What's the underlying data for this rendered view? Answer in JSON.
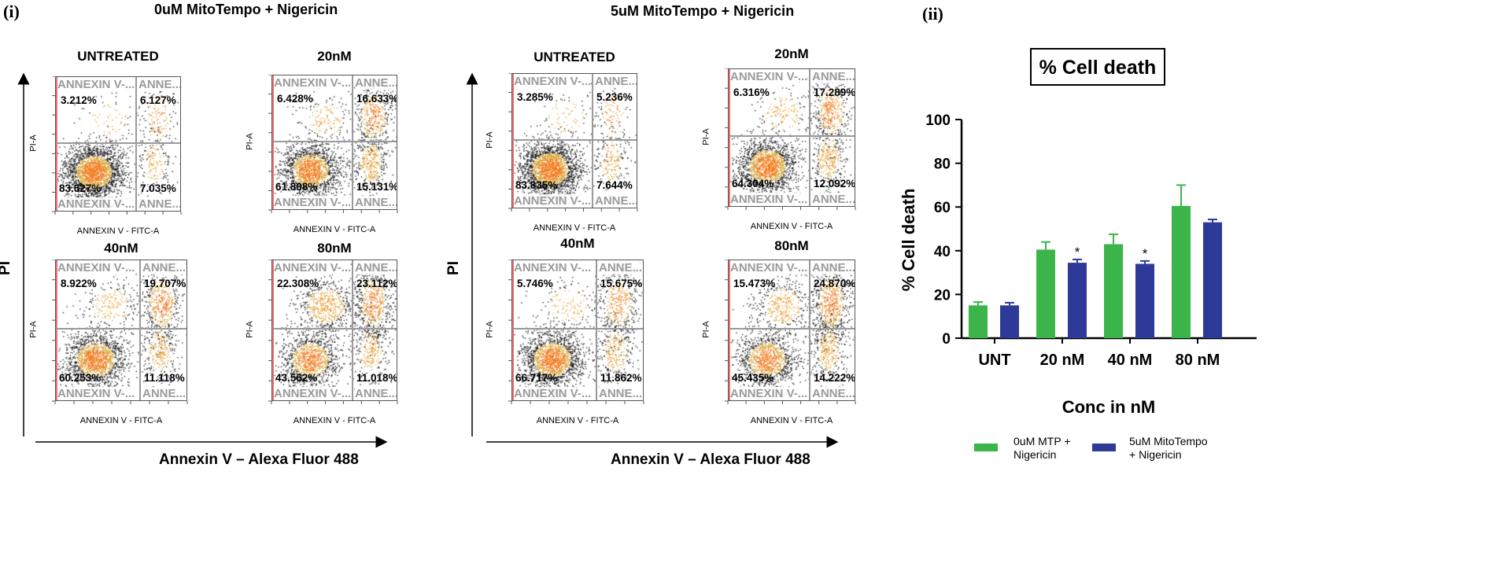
{
  "panel_i_label": "(i)",
  "panel_ii_label": "(ii)",
  "groups": [
    {
      "title": "0uM MitoTempo + Nigericin",
      "y_axis": "PI",
      "x_axis": "Annexin V – Alexa Fluor 488",
      "plots": [
        {
          "title": "UNTREATED",
          "q1": "3.212%",
          "q2": "6.127%",
          "q3": "83.627%",
          "q4": "7.035%"
        },
        {
          "title": "20nM",
          "q1": "6.428%",
          "q2": "16.633%",
          "q3": "61.808%",
          "q4": "15.131%"
        },
        {
          "title": "40nM",
          "q1": "8.922%",
          "q2": "19.707%",
          "q3": "60.253%",
          "q4": "11.118%"
        },
        {
          "title": "80nM",
          "q1": "22.308%",
          "q2": "23.112%",
          "q3": "43.562%",
          "q4": "11.018%"
        }
      ]
    },
    {
      "title": "5uM MitoTempo + Nigericin",
      "y_axis": "PI",
      "x_axis": "Annexin V – Alexa Fluor 488",
      "plots": [
        {
          "title": "UNTREATED",
          "q1": "3.285%",
          "q2": "5.236%",
          "q3": "83.835%",
          "q4": "7.644%"
        },
        {
          "title": "20nM",
          "q1": "6.316%",
          "q2": "17.289%",
          "q3": "64.304%",
          "q4": "12.092%"
        },
        {
          "title": "40nM",
          "q1": "5.746%",
          "q2": "15.675%",
          "q3": "66.717%",
          "q4": "11.862%"
        },
        {
          "title": "80nM",
          "q1": "15.473%",
          "q2": "24.870%",
          "q3": "45.435%",
          "q4": "14.222%"
        }
      ]
    }
  ],
  "flow_labels": {
    "x_axis": "ANNEXIN V - FITC-A",
    "y_axis": "PI-A",
    "gate_upper_left": "ANNEXIN V-...",
    "gate_upper_right": "ANNE...",
    "gate_lower_left": "ANNEXIN V-...",
    "gate_lower_right": "ANNE..."
  },
  "chart_data": {
    "type": "bar",
    "title": "% Cell death",
    "xlabel": "Conc in nM",
    "ylabel": "% Cell death",
    "ylim": [
      0,
      100
    ],
    "yticks": [
      0,
      20,
      40,
      60,
      80,
      100
    ],
    "categories": [
      "UNT",
      "20 nM",
      "40 nM",
      "80 nM"
    ],
    "series": [
      {
        "name": "0uM MTP + Nigericin",
        "color": "#3bb54a",
        "values": [
          15,
          40.5,
          43,
          60.5
        ],
        "errors": [
          1.5,
          3.5,
          4.5,
          9.5
        ]
      },
      {
        "name": "5uM MitoTempo + Nigericin",
        "color": "#2e3a97",
        "values": [
          15,
          34.5,
          34,
          53
        ],
        "errors": [
          1.2,
          1.5,
          1.3,
          1.3
        ]
      }
    ],
    "significance": [
      "",
      "*",
      "*",
      ""
    ],
    "legend_position": "bottom"
  }
}
